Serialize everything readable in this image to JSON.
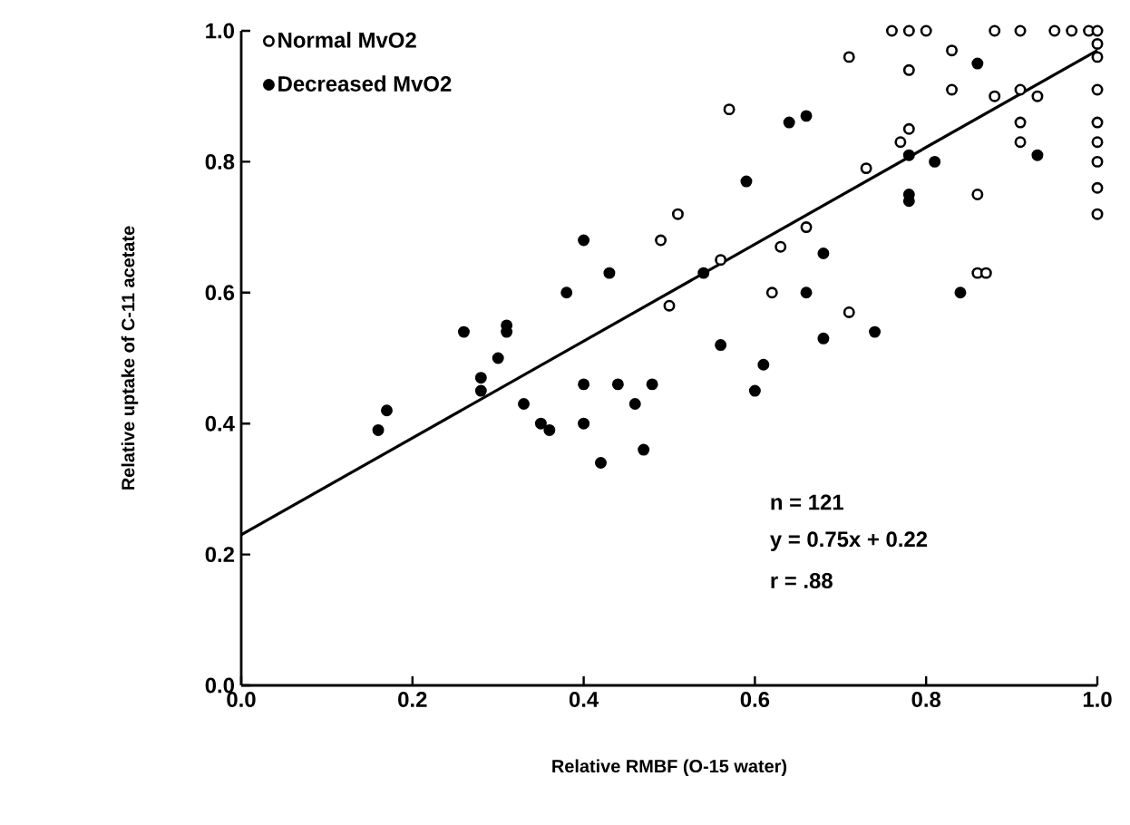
{
  "chart_data": {
    "type": "scatter",
    "xlabel": "Relative RMBF (O-15 water)",
    "ylabel": "Relative uptake of C-11 acetate",
    "xlim": [
      0,
      1
    ],
    "ylim": [
      0,
      1
    ],
    "xticks": [
      {
        "value": 0,
        "label": "0.0"
      },
      {
        "value": 0.2,
        "label": "0.2"
      },
      {
        "value": 0.4,
        "label": "0.4"
      },
      {
        "value": 0.6,
        "label": "0.6"
      },
      {
        "value": 0.8,
        "label": "0.8"
      },
      {
        "value": 1,
        "label": "1.0"
      }
    ],
    "yticks": [
      {
        "value": 0,
        "label": "0.0"
      },
      {
        "value": 0.2,
        "label": "0.2"
      },
      {
        "value": 0.4,
        "label": "0.4"
      },
      {
        "value": 0.6,
        "label": "0.6"
      },
      {
        "value": 0.8,
        "label": "0.8"
      },
      {
        "value": 1,
        "label": "1.0"
      }
    ],
    "grid": false,
    "legend": "top left",
    "annotations": [
      "n = 121",
      "y = 0.75x + 0.22",
      "r = .88"
    ],
    "series": [
      {
        "name": "Normal MvO2",
        "color": "#ffffff",
        "marker": "circle",
        "x": [
          0.76,
          0.78,
          0.8,
          0.88,
          0.91,
          0.95,
          0.97,
          0.99,
          1.0,
          1.0,
          1.0,
          1.0,
          1.0,
          1.0,
          1.0,
          1.0,
          1.0,
          0.71,
          0.78,
          0.83,
          0.83,
          0.57,
          0.88,
          0.91,
          0.93,
          0.91,
          0.91,
          0.78,
          0.77,
          0.73,
          0.86,
          0.51,
          0.66,
          0.63,
          0.56,
          0.86,
          0.87,
          0.62,
          0.5,
          0.71,
          0.49
        ],
        "values": [
          1.0,
          1.0,
          1.0,
          1.0,
          1.0,
          1.0,
          1.0,
          1.0,
          0.98,
          0.96,
          0.91,
          0.86,
          0.83,
          0.8,
          0.76,
          0.72,
          1.0,
          0.96,
          0.94,
          0.97,
          0.91,
          0.88,
          0.9,
          0.91,
          0.9,
          0.86,
          0.83,
          0.85,
          0.83,
          0.79,
          0.75,
          0.72,
          0.7,
          0.67,
          0.65,
          0.63,
          0.63,
          0.6,
          0.58,
          0.57,
          0.68
        ]
      },
      {
        "name": "Decreased MvO2",
        "color": "#000000",
        "marker": "circle",
        "x": [
          0.86,
          0.64,
          0.66,
          0.93,
          0.78,
          0.81,
          0.59,
          0.78,
          0.78,
          0.68,
          0.54,
          0.66,
          0.84,
          0.56,
          0.68,
          0.74,
          0.61,
          0.6,
          0.4,
          0.43,
          0.38,
          0.26,
          0.31,
          0.31,
          0.3,
          0.16,
          0.17,
          0.28,
          0.28,
          0.33,
          0.35,
          0.36,
          0.4,
          0.4,
          0.42,
          0.44,
          0.46,
          0.48,
          0.47
        ],
        "values": [
          0.95,
          0.86,
          0.87,
          0.81,
          0.81,
          0.8,
          0.77,
          0.75,
          0.74,
          0.66,
          0.63,
          0.6,
          0.6,
          0.52,
          0.53,
          0.54,
          0.49,
          0.45,
          0.68,
          0.63,
          0.6,
          0.54,
          0.55,
          0.54,
          0.5,
          0.39,
          0.42,
          0.47,
          0.45,
          0.43,
          0.4,
          0.39,
          0.46,
          0.4,
          0.34,
          0.46,
          0.43,
          0.46,
          0.36
        ]
      },
      {
        "type": "line",
        "color": "#000000",
        "marker": "none",
        "x": [
          0,
          1
        ],
        "values": [
          0.23,
          0.97
        ]
      }
    ]
  }
}
